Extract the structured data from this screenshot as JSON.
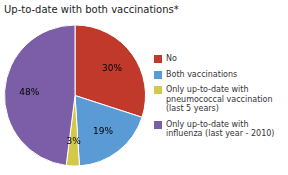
{
  "chart_data": {
    "type": "pie",
    "title": "Up-to-date with both vaccinations*",
    "categories": [
      "No",
      "Both vaccinations",
      "Only up-to-date with\npneumococcal vaccination\n(last 5 years)",
      "Only up-to-date with\ninfluenza (last year - 2010)"
    ],
    "values": [
      30,
      19,
      3,
      48
    ],
    "value_labels": [
      "30%",
      "19%",
      "3%",
      "48%"
    ],
    "colors": [
      "#c0392b",
      "#5b9bd5",
      "#d4c84a",
      "#7b5ea7"
    ],
    "data_labels": true,
    "legend": "right"
  }
}
